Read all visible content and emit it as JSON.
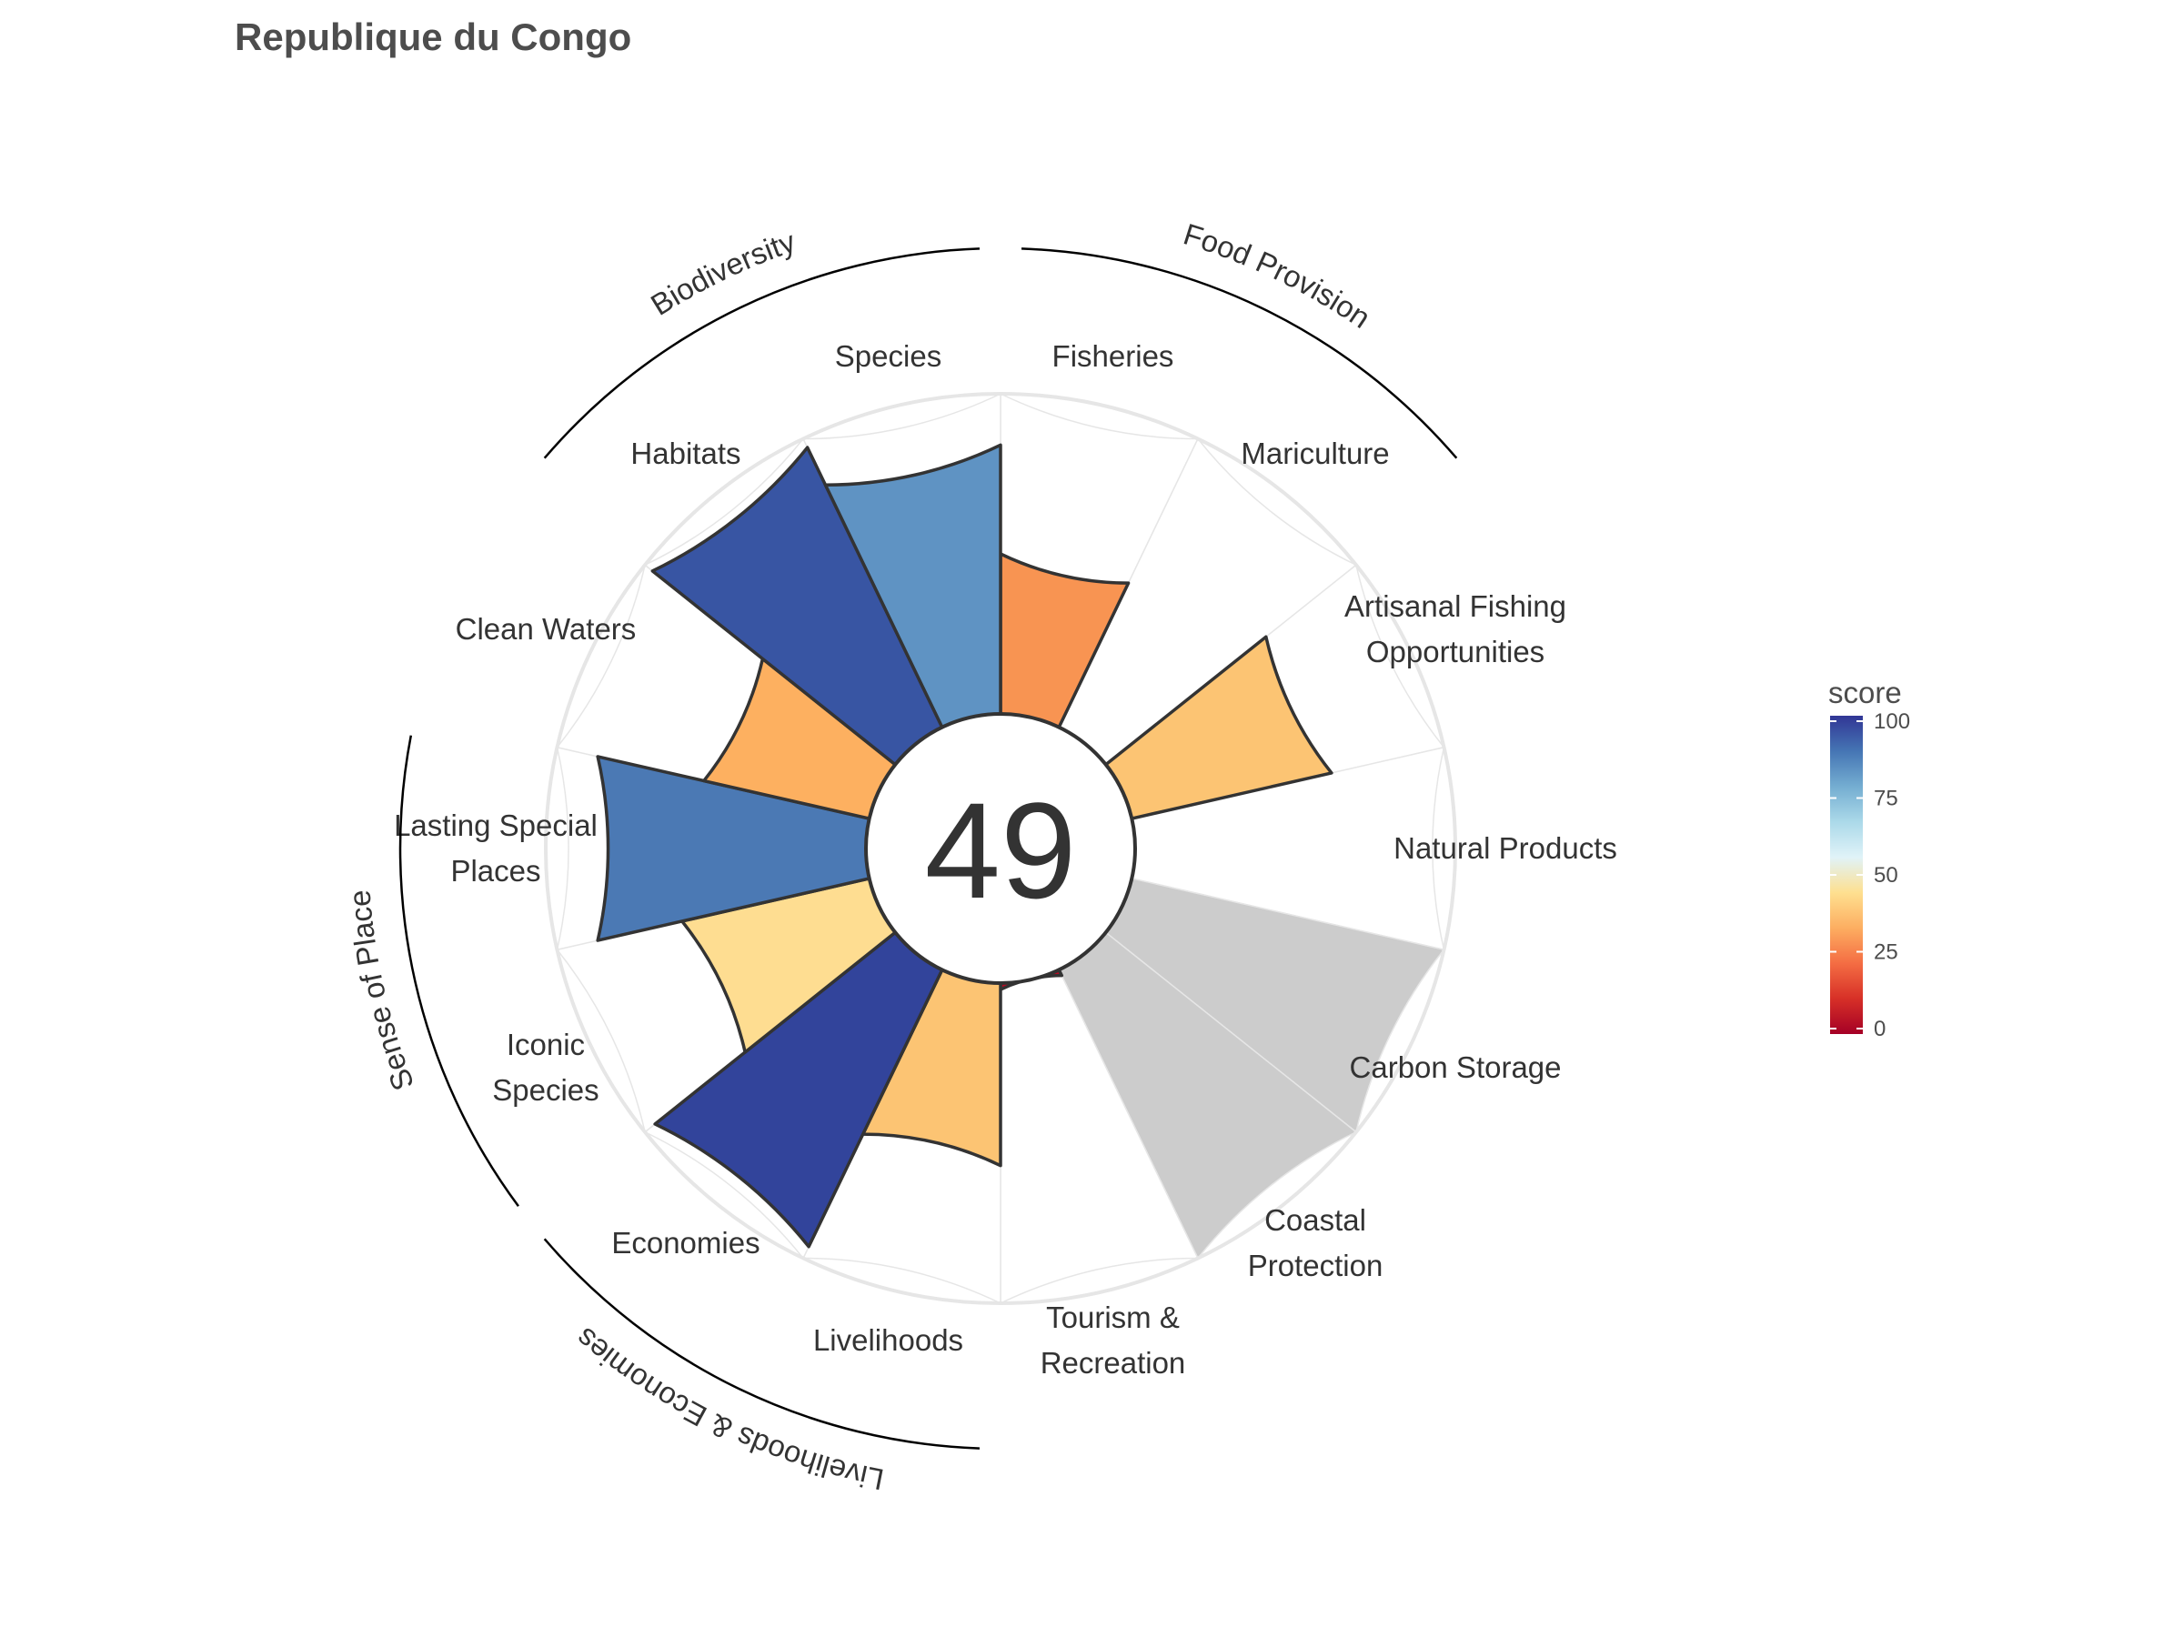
{
  "chart_data": {
    "type": "bar",
    "polar": true,
    "title": "Republique du Congo",
    "overall_score": "49",
    "ylim": [
      0,
      100
    ],
    "categories": [
      "Fisheries",
      "Mariculture",
      "Artisanal Fishing Opportunities",
      "Natural Products",
      "Carbon Storage",
      "Coastal Protection",
      "Tourism & Recreation",
      "Livelihoods",
      "Economies",
      "Iconic Species",
      "Lasting Special Places",
      "Clean Waters",
      "Habitats",
      "Species"
    ],
    "label_lines": [
      [
        "Fisheries"
      ],
      [
        "Mariculture"
      ],
      [
        "Artisanal Fishing",
        "Opportunities"
      ],
      [
        "Natural Products"
      ],
      [
        "Carbon Storage"
      ],
      [
        "Coastal",
        "Protection"
      ],
      [
        "Tourism &",
        "Recreation"
      ],
      [
        "Livelihoods"
      ],
      [
        "Economies"
      ],
      [
        "Iconic",
        "Species"
      ],
      [
        "Lasting Special",
        "Places"
      ],
      [
        "Clean Waters"
      ],
      [
        "Habitats"
      ],
      [
        "Species"
      ]
    ],
    "values": [
      50,
      null,
      64,
      null,
      null,
      null,
      2,
      57,
      96,
      60,
      87,
      53,
      97,
      84
    ],
    "not_applicable": [
      false,
      false,
      false,
      false,
      true,
      true,
      false,
      false,
      false,
      false,
      false,
      false,
      false,
      false
    ],
    "colors": {
      "Fisheries": "#f89452",
      "Artisanal Fishing Opportunities": "#fcc473",
      "Tourism & Recreation": "#b60a24",
      "Livelihoods": "#fcc473",
      "Economies": "#32449b",
      "Iconic Species": "#fedd91",
      "Lasting Special Places": "#4b79b4",
      "Clean Waters": "#fdb060",
      "Habitats": "#3855a3",
      "Species": "#5f93c3"
    },
    "na_color": "#cccccc",
    "groups": [
      {
        "name": "Food Provision",
        "members": [
          "Fisheries",
          "Mariculture"
        ]
      },
      {
        "name": "Biodiversity",
        "members": [
          "Habitats",
          "Species"
        ]
      },
      {
        "name": "Sense of Place",
        "members": [
          "Iconic Species",
          "Lasting Special Places"
        ]
      },
      {
        "name": "Livelihoods & Economies",
        "members": [
          "Livelihoods",
          "Economies"
        ]
      }
    ],
    "legend": {
      "title": "score",
      "ticks": [
        "0",
        "25",
        "50",
        "75",
        "100"
      ],
      "tick_values": [
        0,
        25,
        50,
        75,
        100
      ],
      "range": [
        0,
        100
      ],
      "colors": [
        "#a50026",
        "#d73027",
        "#f46d43",
        "#fdae61",
        "#fee090",
        "#e0f3f8",
        "#abd9e9",
        "#74add1",
        "#4575b4",
        "#313695"
      ],
      "position": "right"
    }
  }
}
